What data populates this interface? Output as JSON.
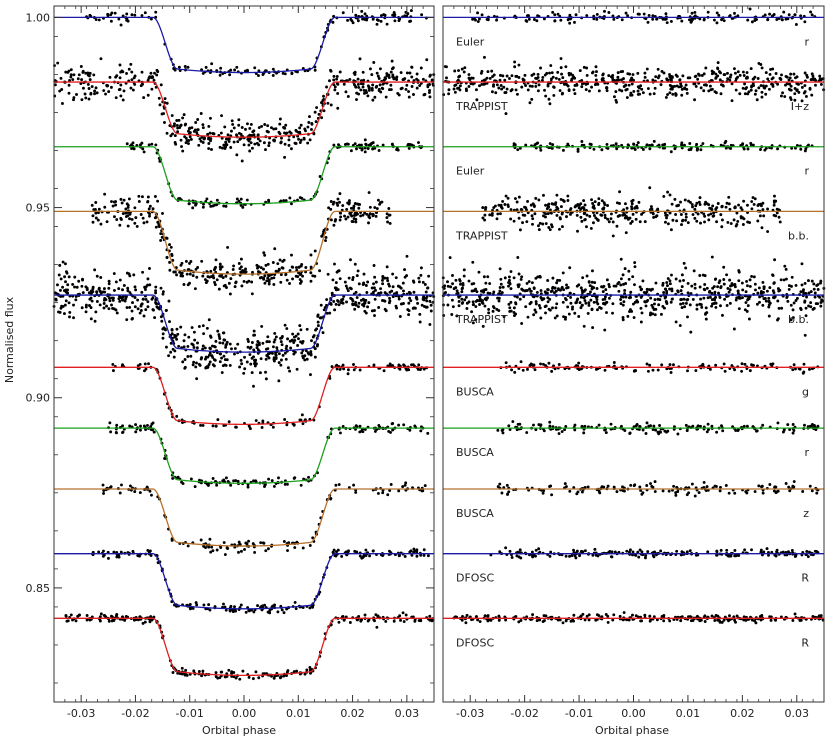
{
  "chart_data": [
    {
      "type": "scatter",
      "panel": "left",
      "xlabel": "Orbital phase",
      "ylabel": "Normalised flux",
      "xlim": [
        -0.035,
        0.035
      ],
      "ylim": [
        0.82,
        1.003
      ],
      "xticks": [
        -0.03,
        -0.02,
        -0.01,
        0.0,
        0.01,
        0.02,
        0.03
      ],
      "xtick_labels": [
        "-0.03",
        "-0.02",
        "-0.01",
        "0.00",
        "0.01",
        "0.02",
        "0.03"
      ],
      "yticks": [
        0.85,
        0.9,
        0.95,
        1.0
      ],
      "ytick_labels": [
        "0.85",
        "0.90",
        "0.95",
        "1.00"
      ],
      "grid": false,
      "series": [
        {
          "baseline": 1.0,
          "depth": 0.0145,
          "range": [
            -0.03,
            0.034
          ],
          "n": 160,
          "scatter": 0.0007,
          "model_color": "#1a1aa8"
        },
        {
          "baseline": 0.983,
          "depth": 0.0145,
          "range": [
            -0.035,
            0.035
          ],
          "n": 520,
          "scatter": 0.0022,
          "model_color": "#e02020"
        },
        {
          "baseline": 0.966,
          "depth": 0.015,
          "range": [
            -0.022,
            0.033
          ],
          "n": 150,
          "scatter": 0.0006,
          "model_color": "#1ca01c"
        },
        {
          "baseline": 0.949,
          "depth": 0.0165,
          "range": [
            -0.028,
            0.027
          ],
          "n": 380,
          "scatter": 0.002,
          "model_color": "#b8702a"
        },
        {
          "baseline": 0.927,
          "depth": 0.015,
          "range": [
            -0.035,
            0.035
          ],
          "n": 720,
          "scatter": 0.0032,
          "model_color": "#1a1aa8"
        },
        {
          "baseline": 0.908,
          "depth": 0.015,
          "range": [
            -0.025,
            0.034
          ],
          "n": 130,
          "scatter": 0.0006,
          "model_color": "#e02020"
        },
        {
          "baseline": 0.892,
          "depth": 0.0145,
          "range": [
            -0.025,
            0.034
          ],
          "n": 170,
          "scatter": 0.0006,
          "model_color": "#1ca01c"
        },
        {
          "baseline": 0.876,
          "depth": 0.015,
          "range": [
            -0.026,
            0.034
          ],
          "n": 140,
          "scatter": 0.0007,
          "model_color": "#b8702a"
        },
        {
          "baseline": 0.859,
          "depth": 0.0145,
          "range": [
            -0.028,
            0.034
          ],
          "n": 210,
          "scatter": 0.0005,
          "model_color": "#1a1aa8"
        },
        {
          "baseline": 0.842,
          "depth": 0.015,
          "range": [
            -0.033,
            0.035
          ],
          "n": 260,
          "scatter": 0.0005,
          "model_color": "#e02020"
        }
      ]
    },
    {
      "type": "scatter",
      "panel": "right",
      "xlabel": "Orbital phase",
      "ylabel": "",
      "xlim": [
        -0.035,
        0.035
      ],
      "ylim": [
        0.82,
        1.003
      ],
      "xticks": [
        -0.03,
        -0.02,
        -0.01,
        0.0,
        0.01,
        0.02,
        0.03
      ],
      "xtick_labels": [
        "-0.03",
        "-0.02",
        "-0.01",
        "0.00",
        "0.01",
        "0.02",
        "0.03"
      ],
      "grid": false,
      "annotations": [
        {
          "instrument": "Euler",
          "filter": "r"
        },
        {
          "instrument": "TRAPPIST",
          "filter": "I+z"
        },
        {
          "instrument": "Euler",
          "filter": "r"
        },
        {
          "instrument": "TRAPPIST",
          "filter": "b.b."
        },
        {
          "instrument": "TRAPPIST",
          "filter": "b.b."
        },
        {
          "instrument": "BUSCA",
          "filter": "g"
        },
        {
          "instrument": "BUSCA",
          "filter": "r"
        },
        {
          "instrument": "BUSCA",
          "filter": "z"
        },
        {
          "instrument": "DFOSC",
          "filter": "R"
        },
        {
          "instrument": "DFOSC",
          "filter": "R"
        }
      ]
    }
  ],
  "transit_model": {
    "t14": 0.0335,
    "t23": 0.0245
  },
  "colors": {
    "blue": "#1a1aa8",
    "red": "#e02020",
    "green": "#1ca01c",
    "orange": "#b8702a",
    "point": "#000000",
    "axis": "#333333"
  }
}
